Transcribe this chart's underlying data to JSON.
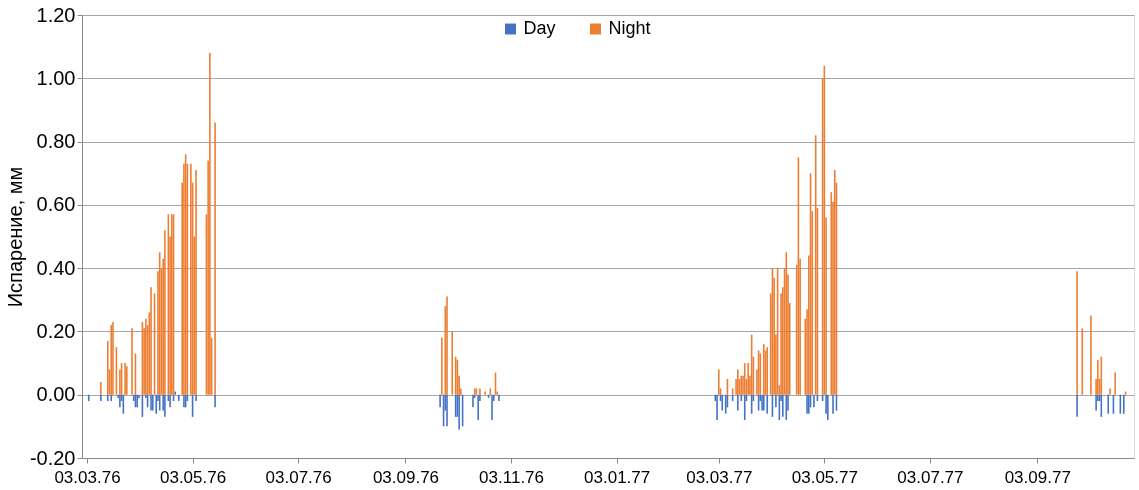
{
  "chart_data": {
    "type": "bar",
    "ylabel": "Испарение, мм",
    "xlim": [
      "1976-03-03",
      "1977-10-26"
    ],
    "xticks": [
      {
        "value": "1976-03-03",
        "label": "03.03.76"
      },
      {
        "value": "1976-05-03",
        "label": "03.05.76"
      },
      {
        "value": "1976-07-03",
        "label": "03.07.76"
      },
      {
        "value": "1976-09-03",
        "label": "03.09.76"
      },
      {
        "value": "1976-11-03",
        "label": "03.11.76"
      },
      {
        "value": "1977-01-03",
        "label": "03.01.77"
      },
      {
        "value": "1977-03-03",
        "label": "03.03.77"
      },
      {
        "value": "1977-05-03",
        "label": "03.05.77"
      },
      {
        "value": "1977-07-03",
        "label": "03.07.77"
      },
      {
        "value": "1977-09-03",
        "label": "03.09.77"
      }
    ],
    "ylim": [
      -0.2,
      1.2
    ],
    "yticks": [
      {
        "value": -0.2,
        "label": "-0.20"
      },
      {
        "value": 0,
        "label": "0.00"
      },
      {
        "value": 0.2,
        "label": "0.20"
      },
      {
        "value": 0.4,
        "label": "0.40"
      },
      {
        "value": 0.6,
        "label": "0.60"
      },
      {
        "value": 0.8,
        "label": "0.80"
      },
      {
        "value": 1.0,
        "label": "1.00"
      },
      {
        "value": 1.2,
        "label": "1.20"
      }
    ],
    "grid": "y",
    "legend": "top",
    "series": [
      {
        "name": "Day",
        "color": "#4472c4",
        "x": [
          "1976-03-04",
          "1976-03-11",
          "1976-03-15",
          "1976-03-17",
          "1976-03-21",
          "1976-03-22",
          "1976-03-23",
          "1976-03-24",
          "1976-03-30",
          "1976-03-31",
          "1976-04-01",
          "1976-04-02",
          "1976-04-04",
          "1976-04-06",
          "1976-04-07",
          "1976-04-09",
          "1976-04-10",
          "1976-04-12",
          "1976-04-13",
          "1976-04-14",
          "1976-04-16",
          "1976-04-17",
          "1976-04-19",
          "1976-04-20",
          "1976-04-22",
          "1976-04-23",
          "1976-04-25",
          "1976-04-28",
          "1976-04-29",
          "1976-04-30",
          "1976-05-03",
          "1976-05-05",
          "1976-05-16",
          "1976-09-23",
          "1976-09-25",
          "1976-09-26",
          "1976-09-27",
          "1976-10-02",
          "1976-10-03",
          "1976-10-04",
          "1976-10-06",
          "1976-10-12",
          "1976-10-13",
          "1976-10-15",
          "1976-10-16",
          "1976-10-21",
          "1976-10-23",
          "1976-10-24",
          "1976-10-27",
          "1977-03-01",
          "1977-03-02",
          "1977-03-04",
          "1977-03-05",
          "1977-03-07",
          "1977-03-08",
          "1977-03-11",
          "1977-03-14",
          "1977-03-16",
          "1977-03-18",
          "1977-03-19",
          "1977-03-22",
          "1977-03-23",
          "1977-03-26",
          "1977-03-27",
          "1977-03-28",
          "1977-03-29",
          "1977-03-31",
          "1977-04-03",
          "1977-04-05",
          "1977-04-07",
          "1977-04-08",
          "1977-04-09",
          "1977-04-11",
          "1977-04-12",
          "1977-04-23",
          "1977-04-24",
          "1977-04-25",
          "1977-04-27",
          "1977-04-29",
          "1977-05-02",
          "1977-05-04",
          "1977-05-05",
          "1977-05-08",
          "1977-05-10",
          "1977-09-26",
          "1977-10-07",
          "1977-10-08",
          "1977-10-09",
          "1977-10-10",
          "1977-10-14",
          "1977-10-17",
          "1977-10-21",
          "1977-10-23"
        ],
        "values": [
          -0.02,
          -0.02,
          -0.02,
          -0.02,
          -0.01,
          -0.04,
          -0.02,
          -0.06,
          -0.02,
          -0.04,
          -0.04,
          -0.01,
          -0.07,
          -0.01,
          -0.04,
          -0.05,
          -0.05,
          -0.06,
          -0.02,
          -0.05,
          -0.05,
          -0.07,
          -0.02,
          -0.04,
          -0.02,
          0.01,
          -0.02,
          -0.04,
          -0.04,
          -0.02,
          -0.07,
          -0.02,
          -0.04,
          -0.04,
          -0.1,
          -0.05,
          -0.1,
          -0.07,
          -0.07,
          -0.11,
          -0.1,
          -0.04,
          -0.01,
          -0.08,
          -0.02,
          -0.01,
          -0.08,
          -0.02,
          -0.02,
          -0.02,
          -0.08,
          -0.02,
          -0.05,
          -0.06,
          -0.04,
          -0.02,
          -0.05,
          -0.02,
          -0.08,
          -0.02,
          -0.06,
          -0.02,
          -0.05,
          -0.02,
          -0.05,
          -0.05,
          -0.06,
          -0.07,
          -0.04,
          -0.08,
          -0.02,
          -0.07,
          -0.08,
          -0.05,
          -0.06,
          -0.06,
          -0.04,
          -0.04,
          -0.02,
          -0.02,
          -0.06,
          -0.08,
          -0.06,
          -0.05,
          -0.07,
          -0.05,
          -0.02,
          -0.02,
          -0.07,
          -0.06,
          -0.06,
          -0.06,
          -0.06
        ]
      },
      {
        "name": "Night",
        "color": "#ed7d31",
        "x": [
          "1976-03-11",
          "1976-03-15",
          "1976-03-16",
          "1976-03-17",
          "1976-03-18",
          "1976-03-20",
          "1976-03-22",
          "1976-03-23",
          "1976-03-25",
          "1976-03-26",
          "1976-03-29",
          "1976-03-31",
          "1976-04-04",
          "1976-04-05",
          "1976-04-06",
          "1976-04-07",
          "1976-04-08",
          "1976-04-09",
          "1976-04-11",
          "1976-04-13",
          "1976-04-14",
          "1976-04-15",
          "1976-04-16",
          "1976-04-17",
          "1976-04-19",
          "1976-04-20",
          "1976-04-21",
          "1976-04-22",
          "1976-04-27",
          "1976-04-28",
          "1976-04-29",
          "1976-04-30",
          "1976-05-02",
          "1976-05-03",
          "1976-05-04",
          "1976-05-05",
          "1976-05-11",
          "1976-05-12",
          "1976-05-13",
          "1976-05-14",
          "1976-05-16",
          "1976-09-24",
          "1976-09-26",
          "1976-09-27",
          "1976-09-30",
          "1976-10-02",
          "1976-10-03",
          "1976-10-04",
          "1976-10-05",
          "1976-10-13",
          "1976-10-14",
          "1976-10-16",
          "1976-10-19",
          "1976-10-22",
          "1976-10-25",
          "1976-10-26",
          "1977-03-03",
          "1977-03-04",
          "1977-03-08",
          "1977-03-11",
          "1977-03-13",
          "1977-03-14",
          "1977-03-15",
          "1977-03-16",
          "1977-03-17",
          "1977-03-18",
          "1977-03-19",
          "1977-03-20",
          "1977-03-21",
          "1977-03-22",
          "1977-03-23",
          "1977-03-25",
          "1977-03-26",
          "1977-03-27",
          "1977-03-29",
          "1977-03-30",
          "1977-03-31",
          "1977-04-02",
          "1977-04-03",
          "1977-04-04",
          "1977-04-05",
          "1977-04-06",
          "1977-04-07",
          "1977-04-08",
          "1977-04-09",
          "1977-04-10",
          "1977-04-11",
          "1977-04-12",
          "1977-04-13",
          "1977-04-17",
          "1977-04-18",
          "1977-04-19",
          "1977-04-22",
          "1977-04-23",
          "1977-04-24",
          "1977-04-25",
          "1977-04-26",
          "1977-04-28",
          "1977-04-29",
          "1977-05-02",
          "1977-05-03",
          "1977-05-04",
          "1977-05-07",
          "1977-05-08",
          "1977-05-09",
          "1977-05-10",
          "1977-09-26",
          "1977-09-29",
          "1977-10-04",
          "1977-10-07",
          "1977-10-08",
          "1977-10-09",
          "1977-10-10",
          "1977-10-15",
          "1977-10-18",
          "1977-10-24"
        ],
        "values": [
          0.04,
          0.17,
          0.08,
          0.22,
          0.23,
          0.15,
          0.08,
          0.1,
          0.1,
          0.09,
          0.21,
          0.13,
          0.23,
          0.21,
          0.24,
          0.22,
          0.26,
          0.34,
          0.32,
          0.39,
          0.45,
          0.4,
          0.43,
          0.52,
          0.57,
          0.5,
          0.57,
          0.57,
          0.67,
          0.73,
          0.76,
          0.73,
          0.73,
          0.67,
          0.5,
          0.71,
          0.57,
          0.74,
          1.08,
          0.18,
          0.86,
          0.18,
          0.28,
          0.31,
          0.2,
          0.12,
          0.11,
          0.06,
          0.02,
          0.02,
          0.02,
          0.02,
          0.01,
          0.02,
          0.07,
          0.01,
          0.08,
          0.02,
          0.05,
          0.02,
          0.05,
          0.08,
          0.05,
          0.06,
          0.06,
          0.1,
          0.05,
          0.1,
          0.06,
          0.19,
          0.12,
          0.08,
          0.14,
          0.13,
          0.16,
          0.14,
          0.15,
          0.32,
          0.4,
          0.37,
          0.19,
          0.4,
          0.03,
          0.32,
          0.34,
          0.4,
          0.45,
          0.38,
          0.29,
          0.41,
          0.75,
          0.43,
          0.24,
          0.27,
          0.44,
          0.7,
          0.58,
          0.82,
          0.59,
          1.0,
          1.04,
          0.56,
          0.64,
          0.61,
          0.71,
          0.67,
          0.39,
          0.21,
          0.25,
          0.05,
          0.11,
          0.05,
          0.12,
          0.02,
          0.07,
          0.01
        ]
      }
    ]
  }
}
